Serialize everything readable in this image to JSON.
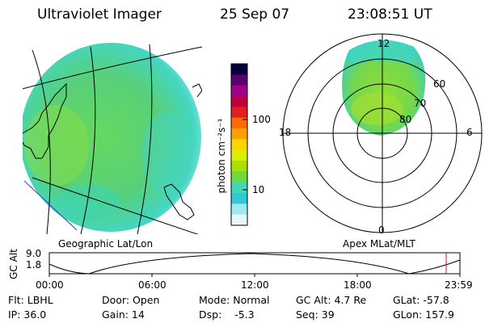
{
  "header": {
    "instrument": "Ultraviolet Imager",
    "date": "25 Sep 07",
    "time": "23:08:51 UT"
  },
  "colorbar": {
    "unit_label": "photon cm⁻²s⁻¹",
    "ticks": [
      "100",
      "10"
    ],
    "scale": "log",
    "colors": [
      "#000040",
      "#5a006e",
      "#a0008c",
      "#c0003c",
      "#e02020",
      "#ff6a00",
      "#ffa000",
      "#ffd400",
      "#d8f000",
      "#a8e000",
      "#70d840",
      "#40d8b8",
      "#30c8d8",
      "#a0e8f0",
      "#e6f8fc"
    ]
  },
  "left_panel": {
    "caption": "Geographic Lat/Lon"
  },
  "right_panel": {
    "caption": "Apex MLat/MLT",
    "mlt_labels": {
      "top": "12",
      "left": "18",
      "right": "6",
      "bottom": "0"
    },
    "lat_labels": [
      "60",
      "70",
      "80"
    ]
  },
  "altitude_plot": {
    "ylabel": "GC Alt",
    "yticks": [
      "9.0",
      "1.8"
    ],
    "xticks": [
      "00:00",
      "06:00",
      "12:00",
      "18:00",
      "23:59"
    ],
    "marker_color": "#c02020"
  },
  "info": {
    "row1": {
      "flt": "Flt: LBHL",
      "door": "Door: Open",
      "mode": "Mode: Normal",
      "gcalt": "GC Alt: 4.7 Re",
      "glat": "GLat: -57.8"
    },
    "row2": {
      "ip": "IP: 36.0",
      "gain": "Gain: 14",
      "dsp": "Dsp:    -5.3",
      "seq": "Seq: 39",
      "glon": "GLon: 157.9"
    }
  }
}
